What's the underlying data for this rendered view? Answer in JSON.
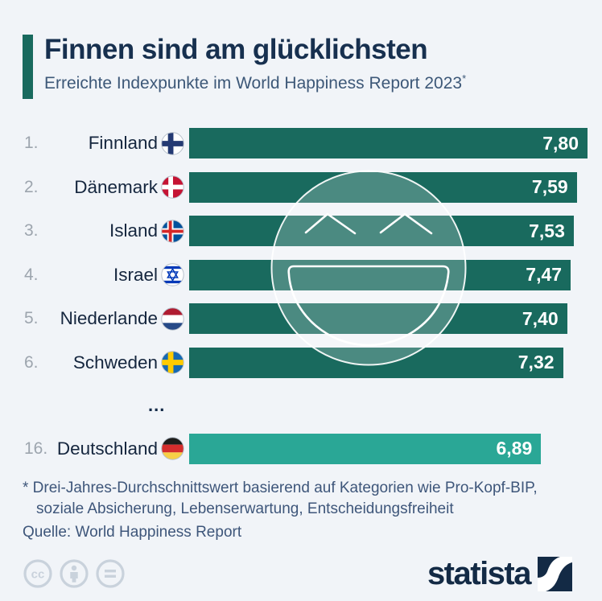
{
  "header": {
    "title": "Finnen sind am glücklichsten",
    "subtitle": "Erreichte Indexpunkte im World Happiness Report 2023",
    "footnote_marker": "*",
    "accent_color": "#196a5e"
  },
  "chart_data": {
    "type": "bar",
    "orientation": "horizontal",
    "title": "Erreichte Indexpunkte im World Happiness Report 2023",
    "max_value": 7.8,
    "bar_color": "#196a5e",
    "highlight_color": "#2aa796",
    "value_text_color": "#ffffff",
    "categories": [
      "Finnland",
      "Dänemark",
      "Island",
      "Israel",
      "Niederlande",
      "Schweden",
      "Deutschland"
    ],
    "values": [
      7.8,
      7.59,
      7.53,
      7.47,
      7.4,
      7.32,
      6.89
    ],
    "rows": [
      {
        "rank": "1.",
        "country": "Finnland",
        "flag": "finland",
        "value": 7.8,
        "value_label": "7,80",
        "color": "#196a5e"
      },
      {
        "rank": "2.",
        "country": "Dänemark",
        "flag": "denmark",
        "value": 7.59,
        "value_label": "7,59",
        "color": "#196a5e"
      },
      {
        "rank": "3.",
        "country": "Island",
        "flag": "iceland",
        "value": 7.53,
        "value_label": "7,53",
        "color": "#196a5e"
      },
      {
        "rank": "4.",
        "country": "Israel",
        "flag": "israel",
        "value": 7.47,
        "value_label": "7,47",
        "color": "#196a5e"
      },
      {
        "rank": "5.",
        "country": "Niederlande",
        "flag": "netherlands",
        "value": 7.4,
        "value_label": "7,40",
        "color": "#196a5e"
      },
      {
        "rank": "6.",
        "country": "Schweden",
        "flag": "sweden",
        "value": 7.32,
        "value_label": "7,32",
        "color": "#196a5e"
      },
      {
        "rank": "16.",
        "country": "Deutschland",
        "flag": "germany",
        "value": 6.89,
        "value_label": "6,89",
        "color": "#2aa796"
      }
    ],
    "gap_label": "...",
    "watermark": "laughing-smiley-icon",
    "legend": "none",
    "grid": false
  },
  "footnotes": {
    "line1": "* Drei-Jahres-Durchschnittswert basierend auf Kategorien wie Pro-Kopf-BIP,",
    "line2": "soziale Absicherung, Lebenserwartung, Entscheidungsfreiheit",
    "source": "Quelle: World Happiness Report"
  },
  "footer": {
    "license_icons": [
      "cc-icon",
      "attribution-person-icon",
      "no-derivatives-equals-icon"
    ],
    "brand": "statista"
  }
}
